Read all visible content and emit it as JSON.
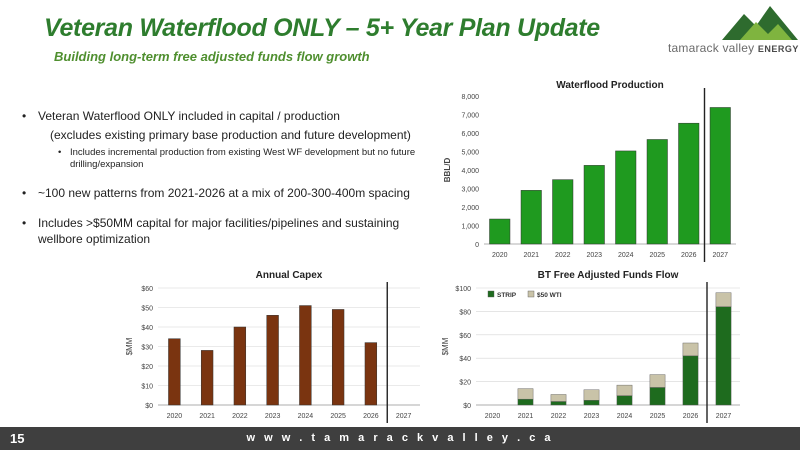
{
  "header": {
    "title": "Veteran Waterflood ONLY – 5+ Year Plan Update",
    "subtitle": "Building long-term free adjusted funds flow growth"
  },
  "logo": {
    "name": "tamarack valley",
    "suffix": "ENERGY",
    "colors": {
      "dark_green": "#2e6b2e",
      "light_green": "#7fb43f"
    }
  },
  "bullets": {
    "b1": "Veteran Waterflood ONLY included in capital / production",
    "b1_cont": "(excludes existing primary base production and future development)",
    "b1_sub": "Includes incremental production from existing West WF development but no future drilling/expansion",
    "b2": "~100 new patterns from 2021-2026 at a mix of 200-300-400m spacing",
    "b3": "Includes >$50MM capital for major facilities/pipelines and sustaining wellbore optimization"
  },
  "footer": {
    "page": "15",
    "website": "w w w . t a m a r a c k v a l l e y . c a"
  },
  "chart_data": [
    {
      "id": "production",
      "type": "bar",
      "title": "Waterflood Production",
      "xlabel": "",
      "ylabel": "BBL/D",
      "categories": [
        "2020",
        "2021",
        "2022",
        "2023",
        "2024",
        "2025",
        "2026",
        "2027"
      ],
      "values": [
        1350,
        2900,
        3480,
        4250,
        5030,
        5650,
        6530,
        7380
      ],
      "ylim": [
        0,
        8000
      ],
      "yticks": [
        0,
        1000,
        2000,
        3000,
        4000,
        5000,
        6000,
        7000,
        8000
      ],
      "ytick_labels": [
        "0",
        "1,000",
        "2,000",
        "3,000",
        "4,000",
        "5,000",
        "6,000",
        "7,000",
        "8,000"
      ],
      "color": "#1f9a1f",
      "grid": false,
      "divider_after": "2026"
    },
    {
      "id": "capex",
      "type": "bar",
      "title": "Annual Capex",
      "xlabel": "",
      "ylabel": "$MM",
      "categories": [
        "2020",
        "2021",
        "2022",
        "2023",
        "2024",
        "2025",
        "2026",
        "2027"
      ],
      "values": [
        34,
        28,
        40,
        46,
        51,
        49,
        32,
        0
      ],
      "ylim": [
        0,
        60
      ],
      "yticks": [
        0,
        10,
        20,
        30,
        40,
        50,
        60
      ],
      "ytick_labels": [
        "$0",
        "$10",
        "$20",
        "$30",
        "$40",
        "$50",
        "$60"
      ],
      "color": "#7a3410",
      "grid": true,
      "divider_after": "2026"
    },
    {
      "id": "fcf",
      "type": "bar",
      "stacked": true,
      "title": "BT Free Adjusted Funds Flow",
      "xlabel": "",
      "ylabel": "$MM",
      "categories": [
        "2020",
        "2021",
        "2022",
        "2023",
        "2024",
        "2025",
        "2026",
        "2027"
      ],
      "series": [
        {
          "name": "STRIP",
          "values": [
            0,
            5,
            3,
            4,
            8,
            15,
            42,
            84
          ],
          "color": "#1e6b1e"
        },
        {
          "name": "$50 WTI",
          "values": [
            0,
            9,
            6,
            9,
            9,
            11,
            11,
            12
          ],
          "color": "#c9c3a8"
        }
      ],
      "ylim": [
        0,
        100
      ],
      "yticks": [
        0,
        20,
        40,
        60,
        80,
        100
      ],
      "ytick_labels": [
        "$0",
        "$20",
        "$40",
        "$60",
        "$80",
        "$100"
      ],
      "legend": "top-left",
      "grid": true,
      "divider_after": "2026"
    }
  ]
}
